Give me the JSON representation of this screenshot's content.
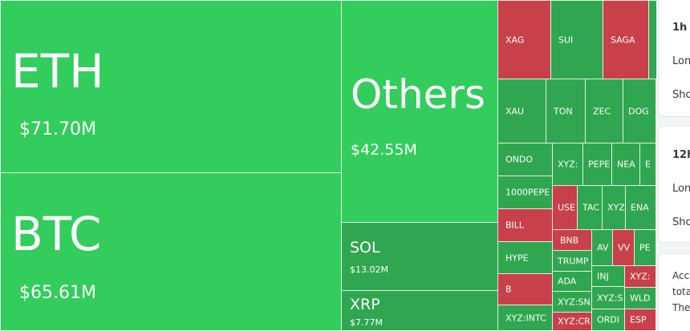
{
  "treemap": {
    "big": {
      "eth": {
        "name": "ETH",
        "value": "$71.70M"
      },
      "btc": {
        "name": "BTC",
        "value": "$65.61M"
      },
      "others": {
        "name": "Others",
        "value": "$42.55M"
      },
      "sol": {
        "name": "SOL",
        "value": "$13.02M"
      },
      "xrp": {
        "name": "XRP",
        "value": "$7.77M"
      }
    },
    "small": [
      "XAG",
      "SUI",
      "SAGA",
      "XAU",
      "TON",
      "ZEC",
      "DOG",
      "ONDO",
      "XYZ:",
      "PEPE",
      "NEA",
      "E",
      "1000PEPE",
      "USE",
      "TAC",
      "XYZ",
      "ENA",
      "BILL",
      "BNB",
      "AV",
      "VV",
      "PE",
      "HYPE",
      "TRUMP",
      "INJ",
      "XYZ:",
      "ADA",
      "WLD",
      "B",
      "XYZ:SN",
      "XYZ:S",
      "XYZ:INTC",
      "XYZ:CR",
      "ORDI",
      "ESP"
    ]
  },
  "side_panel": {
    "card1": {
      "period": "1h",
      "long": "Lon",
      "short": "Sho"
    },
    "card2": {
      "period": "12h",
      "long": "Lon",
      "short": "Sho"
    },
    "card3": {
      "line1": "Acc",
      "line2": "tota",
      "line3": "The"
    }
  }
}
